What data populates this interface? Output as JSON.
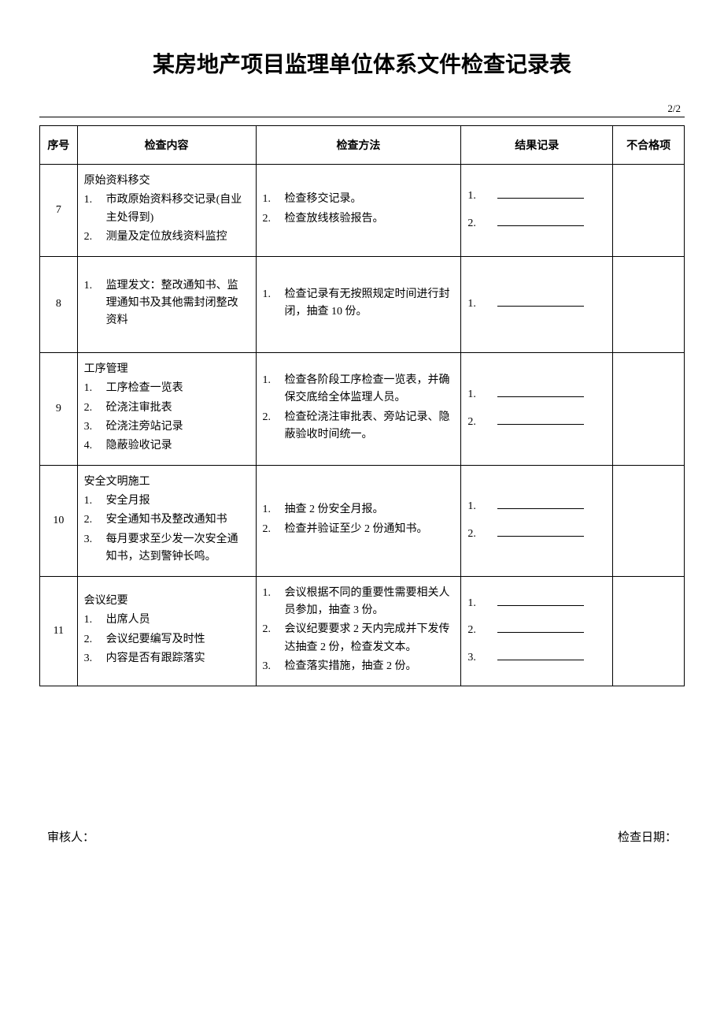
{
  "title": "某房地产项目监理单位体系文件检查记录表",
  "page_number": "2/2",
  "headers": {
    "seq": "序号",
    "content": "检查内容",
    "method": "检查方法",
    "result": "结果记录",
    "fail": "不合格项"
  },
  "rows": [
    {
      "seq": "7",
      "content_heading": "原始资料移交",
      "content_items": [
        "市政原始资料移交记录(自业主处得到)",
        "测量及定位放线资料监控"
      ],
      "method_items": [
        "检查移交记录。",
        "检查放线核验报告。"
      ],
      "result_count": 2,
      "tall": false
    },
    {
      "seq": "8",
      "content_heading": "",
      "content_items": [
        "监理发文：整改通知书、监理通知书及其他需封闭整改资料"
      ],
      "method_items": [
        "检查记录有无按照规定时间进行封闭，抽查 10 份。"
      ],
      "result_count": 1,
      "tall": true
    },
    {
      "seq": "9",
      "content_heading": "工序管理",
      "content_items": [
        "工序检查一览表",
        "砼浇注审批表",
        "砼浇注旁站记录",
        "隐蔽验收记录"
      ],
      "method_items": [
        "检查各阶段工序检查一览表，并确保交底给全体监理人员。",
        "检查砼浇注审批表、旁站记录、隐蔽验收时间统一。"
      ],
      "result_count": 2,
      "tall": false
    },
    {
      "seq": "10",
      "content_heading": "安全文明施工",
      "content_items": [
        "安全月报",
        "安全通知书及整改通知书",
        "每月要求至少发一次安全通知书，达到警钟长鸣。"
      ],
      "method_items": [
        "抽查 2 份安全月报。",
        "检查并验证至少 2 份通知书。"
      ],
      "result_count": 2,
      "tall": false
    },
    {
      "seq": "11",
      "content_heading": "会议纪要",
      "content_items": [
        "出席人员",
        "会议纪要编写及时性",
        "内容是否有跟踪落实"
      ],
      "method_items": [
        "会议根据不同的重要性需要相关人员参加，抽查 3 份。",
        "会议纪要要求 2 天内完成并下发传达抽查 2 份，检查发文本。",
        "检查落实措施，抽查 2 份。"
      ],
      "result_count": 3,
      "tall": false
    }
  ],
  "footer": {
    "reviewer_label": "审核人：",
    "date_label": "检查日期："
  },
  "styles": {
    "background_color": "#ffffff",
    "text_color": "#000000",
    "border_color": "#000000",
    "title_fontsize": 28,
    "body_fontsize": 14,
    "footer_fontsize": 15
  }
}
